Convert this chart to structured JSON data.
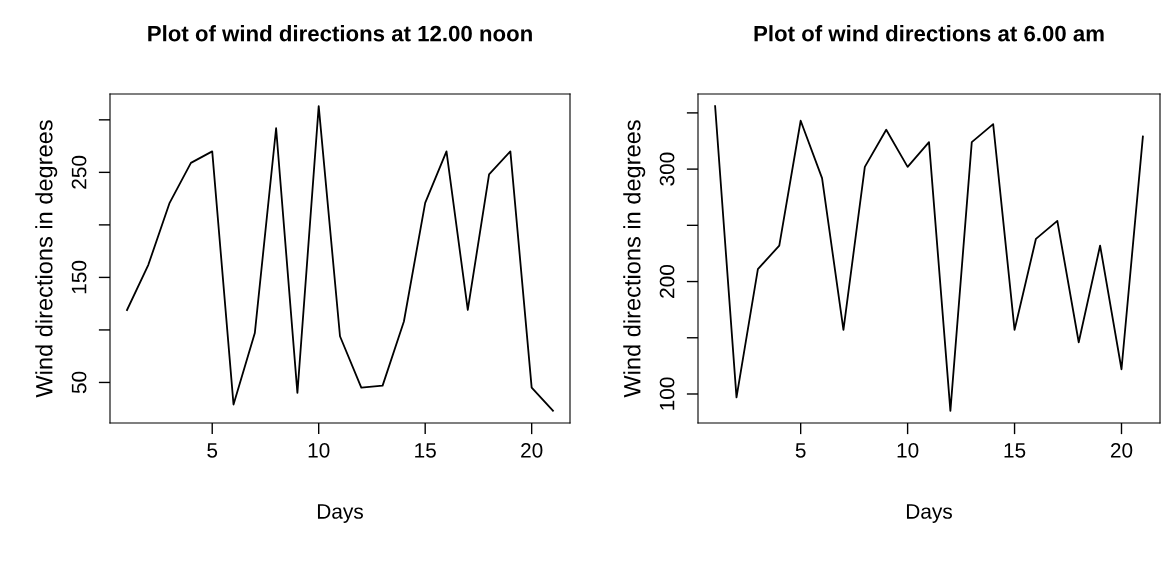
{
  "chart_data": [
    {
      "type": "line",
      "title": "Plot of wind directions at 12.00 noon",
      "xlabel": "Days",
      "ylabel": "Wind directions in degrees",
      "x": [
        1,
        2,
        3,
        4,
        5,
        6,
        7,
        8,
        9,
        10,
        11,
        12,
        13,
        14,
        15,
        16,
        17,
        18,
        19,
        20,
        21
      ],
      "series": [
        {
          "color": "#000000",
          "values": [
            119,
            162,
            221,
            259,
            270,
            29,
            97,
            292,
            40,
            313,
            94,
            45,
            47,
            108,
            221,
            270,
            119,
            248,
            270,
            45,
            23
          ]
        }
      ],
      "xlim": [
        0.2,
        21.8
      ],
      "ylim": [
        11.4,
        324.6
      ],
      "xticks": [
        5,
        10,
        15,
        20
      ],
      "yticks": [
        50,
        {
          "value": 100,
          "label": null
        },
        150,
        {
          "value": 200,
          "label": null
        },
        250,
        {
          "value": 300,
          "label": null
        }
      ],
      "grid": false,
      "legend": false
    },
    {
      "type": "line",
      "title": "Plot of wind directions at 6.00 am",
      "xlabel": "Days",
      "ylabel": "Wind directions in degrees",
      "x": [
        1,
        2,
        3,
        4,
        5,
        6,
        7,
        8,
        9,
        10,
        11,
        12,
        13,
        14,
        15,
        16,
        17,
        18,
        19,
        20,
        21
      ],
      "series": [
        {
          "color": "#000000",
          "values": [
            356,
            97,
            211,
            232,
            343,
            292,
            157,
            302,
            335,
            302,
            324,
            85,
            324,
            340,
            157,
            238,
            254,
            146,
            232,
            122,
            329
          ]
        }
      ],
      "xlim": [
        0.2,
        21.8
      ],
      "ylim": [
        74.2,
        366.8
      ],
      "xticks": [
        5,
        10,
        15,
        20
      ],
      "yticks": [
        100,
        {
          "value": 150,
          "label": null
        },
        200,
        {
          "value": 250,
          "label": null
        },
        300,
        {
          "value": 350,
          "label": null
        }
      ],
      "grid": false,
      "legend": false
    }
  ]
}
